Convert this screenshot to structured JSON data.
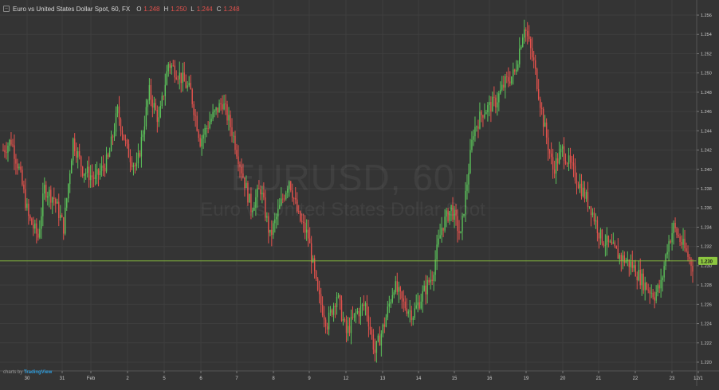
{
  "header": {
    "collapse_glyph": "–",
    "title": "Euro vs United States Dollar Spot, 60, FX",
    "ohlc": [
      {
        "key": "O",
        "value": "1.248"
      },
      {
        "key": "H",
        "value": "1.250"
      },
      {
        "key": "L",
        "value": "1.244"
      },
      {
        "key": "C",
        "value": "1.248"
      }
    ]
  },
  "watermark": {
    "line1": "EURUSD, 60",
    "line2": "Euro vs United States Dollar Spot"
  },
  "credit": {
    "prefix": "charts by",
    "brand": "TradingView"
  },
  "colors": {
    "background": "#343434",
    "grid": "#3e3e3e",
    "up": "#5bc25a",
    "down": "#e4524d",
    "last_price_line": "#8cc63f",
    "axis_text": "#cccccc"
  },
  "chart_data": {
    "type": "candlestick",
    "ylim": [
      1.219,
      1.2575
    ],
    "y_ticks": [
      "1.220",
      "1.222",
      "1.224",
      "1.226",
      "1.228",
      "1.230",
      "1.232",
      "1.234",
      "1.236",
      "1.238",
      "1.240",
      "1.242",
      "1.244",
      "1.246",
      "1.248",
      "1.250",
      "1.252",
      "1.254",
      "1.256"
    ],
    "x_labels": [
      "30",
      "31",
      "Feb",
      "2",
      "5",
      "6",
      "7",
      "8",
      "9",
      "12",
      "13",
      "14",
      "15",
      "16",
      "19",
      "20",
      "21",
      "22",
      "23",
      "12/1"
    ],
    "last_price": 1.2305,
    "last_price_label": "1.230",
    "anchors": [
      [
        0,
        1.242
      ],
      [
        5,
        1.243
      ],
      [
        10,
        1.24
      ],
      [
        16,
        1.235
      ],
      [
        22,
        1.233
      ],
      [
        26,
        1.238
      ],
      [
        32,
        1.237
      ],
      [
        38,
        1.234
      ],
      [
        44,
        1.243
      ],
      [
        50,
        1.24
      ],
      [
        58,
        1.239
      ],
      [
        66,
        1.241
      ],
      [
        72,
        1.246
      ],
      [
        78,
        1.242
      ],
      [
        84,
        1.24
      ],
      [
        92,
        1.248
      ],
      [
        98,
        1.245
      ],
      [
        104,
        1.251
      ],
      [
        110,
        1.25
      ],
      [
        118,
        1.248
      ],
      [
        124,
        1.243
      ],
      [
        130,
        1.245
      ],
      [
        138,
        1.247
      ],
      [
        144,
        1.244
      ],
      [
        150,
        1.24
      ],
      [
        156,
        1.236
      ],
      [
        162,
        1.238
      ],
      [
        168,
        1.233
      ],
      [
        174,
        1.236
      ],
      [
        180,
        1.239
      ],
      [
        186,
        1.235
      ],
      [
        192,
        1.233
      ],
      [
        198,
        1.227
      ],
      [
        204,
        1.224
      ],
      [
        210,
        1.227
      ],
      [
        216,
        1.223
      ],
      [
        222,
        1.225
      ],
      [
        228,
        1.226
      ],
      [
        234,
        1.221
      ],
      [
        240,
        1.224
      ],
      [
        246,
        1.228
      ],
      [
        252,
        1.226
      ],
      [
        258,
        1.225
      ],
      [
        264,
        1.227
      ],
      [
        270,
        1.229
      ],
      [
        276,
        1.234
      ],
      [
        282,
        1.236
      ],
      [
        288,
        1.233
      ],
      [
        290,
        1.236
      ],
      [
        296,
        1.244
      ],
      [
        302,
        1.246
      ],
      [
        310,
        1.247
      ],
      [
        316,
        1.249
      ],
      [
        322,
        1.25
      ],
      [
        328,
        1.255
      ],
      [
        334,
        1.251
      ],
      [
        340,
        1.245
      ],
      [
        346,
        1.24
      ],
      [
        352,
        1.242
      ],
      [
        358,
        1.24
      ],
      [
        364,
        1.238
      ],
      [
        370,
        1.236
      ],
      [
        376,
        1.233
      ],
      [
        382,
        1.232
      ],
      [
        388,
        1.231
      ],
      [
        396,
        1.23
      ],
      [
        404,
        1.228
      ],
      [
        410,
        1.227
      ],
      [
        414,
        1.228
      ],
      [
        418,
        1.232
      ],
      [
        422,
        1.234
      ],
      [
        428,
        1.232
      ],
      [
        434,
        1.23
      ]
    ]
  }
}
